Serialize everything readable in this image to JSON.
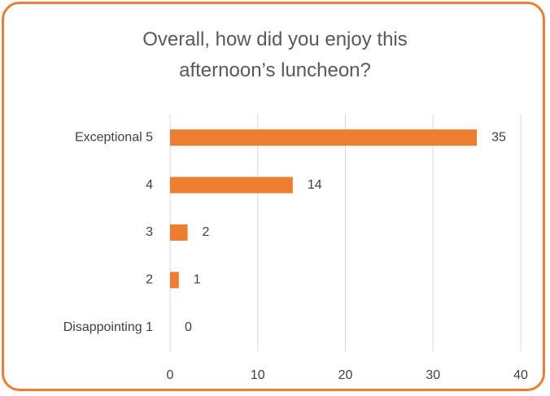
{
  "chart_data": {
    "type": "bar",
    "orientation": "horizontal",
    "title": "Overall, how did you enjoy this afternoon’s luncheon?",
    "categories": [
      "Exceptional 5",
      "4",
      "3",
      "2",
      "Disappointing 1"
    ],
    "values": [
      35,
      14,
      2,
      1,
      0
    ],
    "color": "#ed7d31",
    "xlim": [
      0,
      40
    ],
    "xticks": [
      0,
      10,
      20,
      30,
      40
    ],
    "grid": true
  }
}
